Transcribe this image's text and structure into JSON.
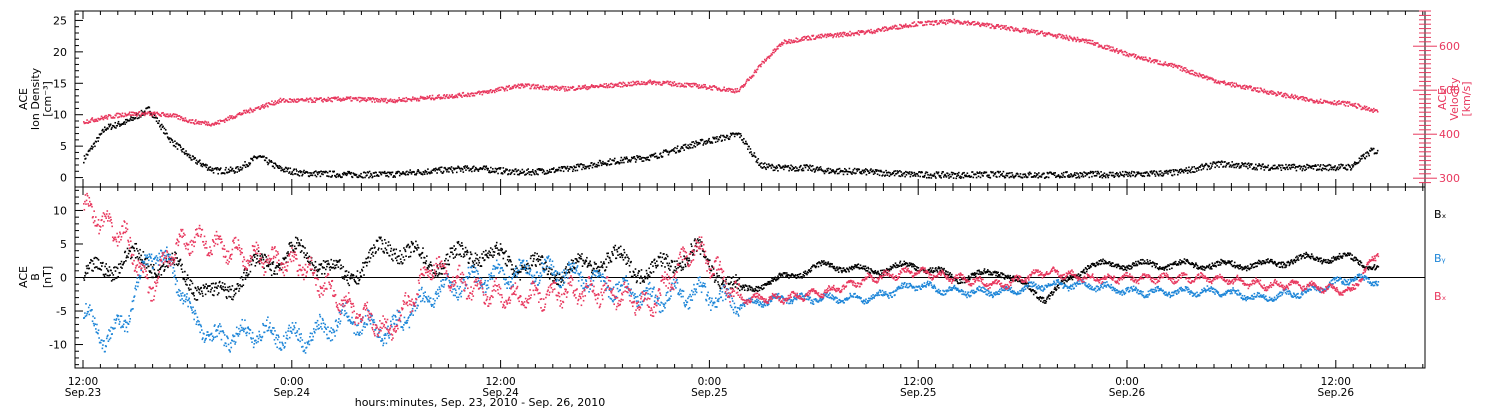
{
  "chart_data": [
    {
      "type": "scatter",
      "panel": "top",
      "ylabel_left": [
        "ACE",
        "Ion Density",
        "[cm⁻³]"
      ],
      "ylabel_right": [
        "ACE",
        "Velocity",
        "[km/s]"
      ],
      "ylim_left": [
        -1.5,
        26.5
      ],
      "ylim_right": [
        280,
        680
      ],
      "yticks_left": [
        "0",
        "5",
        "10",
        "15",
        "20",
        "25"
      ],
      "yticks_right": [
        "300",
        "400",
        "500",
        "600"
      ],
      "series": [
        {
          "color": "#000000",
          "axis": "left",
          "x_hours": [
            0,
            2,
            4,
            6,
            8,
            10,
            12,
            14,
            16,
            18,
            20,
            24,
            28,
            32,
            36,
            40,
            44,
            48,
            52,
            56,
            60,
            62,
            64,
            66,
            68,
            72,
            76,
            80,
            84,
            88,
            92,
            96,
            100,
            104,
            108,
            112,
            116,
            118,
            118.5
          ],
          "values": [
            3,
            8,
            9,
            11,
            6,
            3,
            1.2,
            1.3,
            3.5,
            1.5,
            0.8,
            0.6,
            0.6,
            1.2,
            1.6,
            0.9,
            1.4,
            2.6,
            3.4,
            5.5,
            7,
            2,
            1.6,
            1.7,
            1.2,
            1.0,
            0.6,
            0.5,
            0.6,
            0.5,
            0.6,
            0.6,
            0.9,
            2.3,
            1.8,
            1.7,
            1.8,
            4.5,
            4
          ]
        },
        {
          "color": "#e8385e",
          "axis": "right",
          "x_hours": [
            0,
            2,
            4,
            6,
            8,
            10,
            12,
            14,
            16,
            18,
            20,
            24,
            28,
            32,
            36,
            40,
            44,
            48,
            52,
            56,
            60,
            62,
            64,
            66,
            68,
            72,
            76,
            80,
            84,
            88,
            92,
            96,
            100,
            104,
            108,
            112,
            116,
            118,
            118.5
          ],
          "values": [
            430,
            440,
            448,
            448,
            445,
            430,
            425,
            445,
            462,
            478,
            478,
            482,
            478,
            485,
            494,
            512,
            505,
            512,
            520,
            512,
            500,
            560,
            610,
            620,
            625,
            635,
            652,
            658,
            645,
            630,
            612,
            580,
            555,
            520,
            500,
            480,
            470,
            455,
            455
          ]
        }
      ]
    },
    {
      "type": "line",
      "panel": "bottom",
      "ylabel": [
        "ACE",
        "B",
        "[nT]"
      ],
      "ylim": [
        -13.5,
        13.5
      ],
      "yticks": [
        "-10",
        "-5",
        "0",
        "5",
        "10"
      ],
      "legend": [
        "Bₓ",
        "Bᵧ",
        "Bₓ"
      ],
      "series": [
        {
          "name": "Bx",
          "color": "#000000",
          "x_hours": [
            0,
            4,
            8,
            12,
            16,
            20,
            24,
            28,
            32,
            36,
            40,
            44,
            48,
            52,
            56,
            60,
            64,
            68,
            72,
            76,
            80,
            84,
            88,
            92,
            96,
            100,
            104,
            108,
            112,
            116,
            118.5
          ],
          "values": [
            0,
            3,
            2,
            -3,
            2,
            4,
            0,
            5,
            2,
            4,
            2,
            1,
            3,
            1,
            4,
            -2,
            0,
            2,
            1,
            2,
            0,
            1,
            -3,
            2,
            2,
            2,
            2,
            2,
            3,
            3,
            1.5
          ]
        },
        {
          "name": "By",
          "color": "#1e86d8",
          "x_hours": [
            0,
            2,
            4,
            6,
            8,
            10,
            12,
            16,
            20,
            24,
            28,
            32,
            36,
            40,
            44,
            48,
            52,
            56,
            60,
            64,
            68,
            72,
            76,
            80,
            84,
            88,
            92,
            96,
            100,
            104,
            108,
            112,
            116,
            118.5
          ],
          "values": [
            -5,
            -9,
            -6,
            4,
            2,
            -6,
            -9,
            -8,
            -9,
            -6,
            -8,
            -2,
            0,
            1,
            1,
            -1,
            -3,
            -2,
            -4,
            -3,
            -3,
            -3,
            -1,
            -2,
            -2,
            -1,
            -1,
            -2,
            -2,
            -2,
            -3,
            -2,
            0,
            -0.5
          ]
        },
        {
          "name": "Bz",
          "color": "#e8385e",
          "x_hours": [
            0,
            2,
            4,
            6,
            8,
            10,
            12,
            16,
            20,
            24,
            28,
            32,
            36,
            40,
            44,
            48,
            52,
            56,
            60,
            64,
            68,
            72,
            76,
            80,
            84,
            88,
            92,
            96,
            100,
            104,
            108,
            112,
            116,
            118.5
          ],
          "values": [
            11,
            8,
            6,
            -2,
            4,
            6,
            5,
            3,
            2,
            -4,
            -8,
            2,
            -2,
            -3,
            -2,
            -2,
            -4,
            5,
            -3,
            -3,
            -2,
            0,
            1,
            0,
            -1,
            1,
            0,
            0,
            0,
            0,
            -1,
            -1,
            -2,
            4
          ]
        }
      ]
    }
  ],
  "x_axis": {
    "range_hours": [
      0,
      124
    ],
    "major_ticks_hours": [
      0,
      12,
      24,
      36,
      48,
      60,
      72,
      84,
      96,
      108,
      120
    ],
    "major_labels": [
      "12:00",
      "0:00",
      "12:00",
      "0:00",
      "12:00",
      "0:00",
      "12:00",
      "0:00",
      "12:00",
      "0:00",
      "12:00"
    ],
    "date_labels": [
      "Sep.23",
      "Sep.24",
      "Sep.24",
      "Sep.25",
      "Sep.25",
      "Sep.26",
      "Sep.26"
    ],
    "xlabel": "hours:minutes, Sep. 23, 2010 - Sep. 26, 2010"
  }
}
